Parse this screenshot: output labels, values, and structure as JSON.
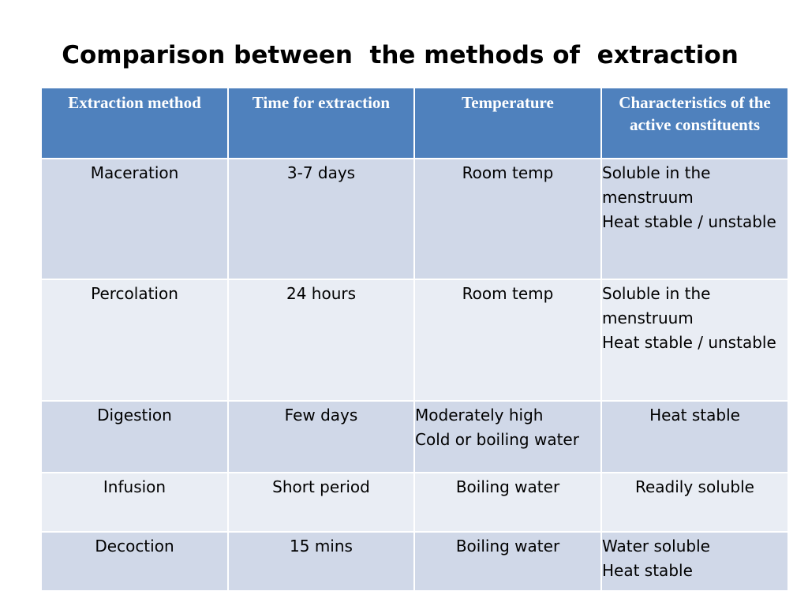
{
  "title": "Comparison between  the methods of  extraction",
  "table": {
    "headers": [
      "Extraction method",
      "Time for extraction",
      "Temperature",
      "Characteristics of the active constituents"
    ],
    "rows": [
      {
        "method": "Maceration",
        "time": "3-7 days",
        "temperature": [
          "Room temp"
        ],
        "characteristics": [
          "Soluble in the menstruum",
          "Heat stable / unstable"
        ]
      },
      {
        "method": "Percolation",
        "time": "24 hours",
        "temperature": [
          "Room temp"
        ],
        "characteristics": [
          "Soluble in the menstruum",
          "Heat stable / unstable"
        ]
      },
      {
        "method": "Digestion",
        "time": "Few days",
        "temperature": [
          "Moderately high",
          "Cold or boiling water"
        ],
        "characteristics": [
          "Heat stable"
        ]
      },
      {
        "method": "Infusion",
        "time": "Short period",
        "temperature": [
          "Boiling water"
        ],
        "characteristics": [
          "Readily soluble"
        ]
      },
      {
        "method": "Decoction",
        "time": "15 mins",
        "temperature": [
          "Boiling water"
        ],
        "characteristics": [
          "Water soluble",
          "Heat stable"
        ]
      }
    ]
  },
  "colors": {
    "header_bg": "#4f81bd",
    "row_dark": "#d0d8e8",
    "row_light": "#e9edf4"
  }
}
